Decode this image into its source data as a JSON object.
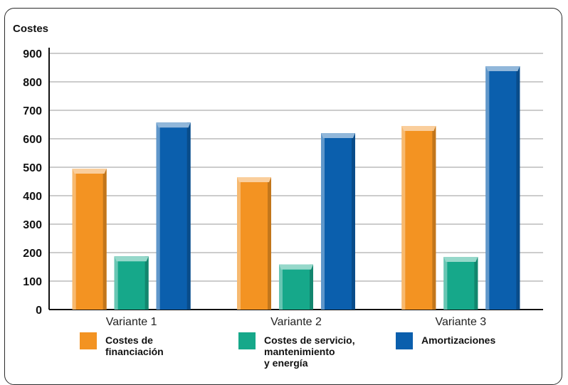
{
  "chart_data": {
    "type": "bar",
    "ylabel": "Costes",
    "ylim": [
      0,
      900
    ],
    "yticks": [
      "0",
      "100",
      "200",
      "300",
      "400",
      "500",
      "600",
      "700",
      "800",
      "900"
    ],
    "grid": true,
    "legend_position": "bottom",
    "categories": [
      "Variante 1",
      "Variante 2",
      "Variante 3"
    ],
    "series": [
      {
        "name": "Costes de financiación",
        "legend_lines": [
          "Costes de",
          "financiación"
        ],
        "color": "#f39322",
        "values": [
          495,
          465,
          645
        ]
      },
      {
        "name": "Costes de servicio, mantenimiento y energía",
        "legend_lines": [
          "Costes de servicio,",
          "mantenimiento",
          "y energía"
        ],
        "color": "#16a88a",
        "values": [
          187,
          158,
          185
        ]
      },
      {
        "name": "Amortizaciones",
        "legend_lines": [
          "Amortizaciones"
        ],
        "color": "#0b5fad",
        "values": [
          657,
          620,
          855
        ]
      }
    ]
  }
}
